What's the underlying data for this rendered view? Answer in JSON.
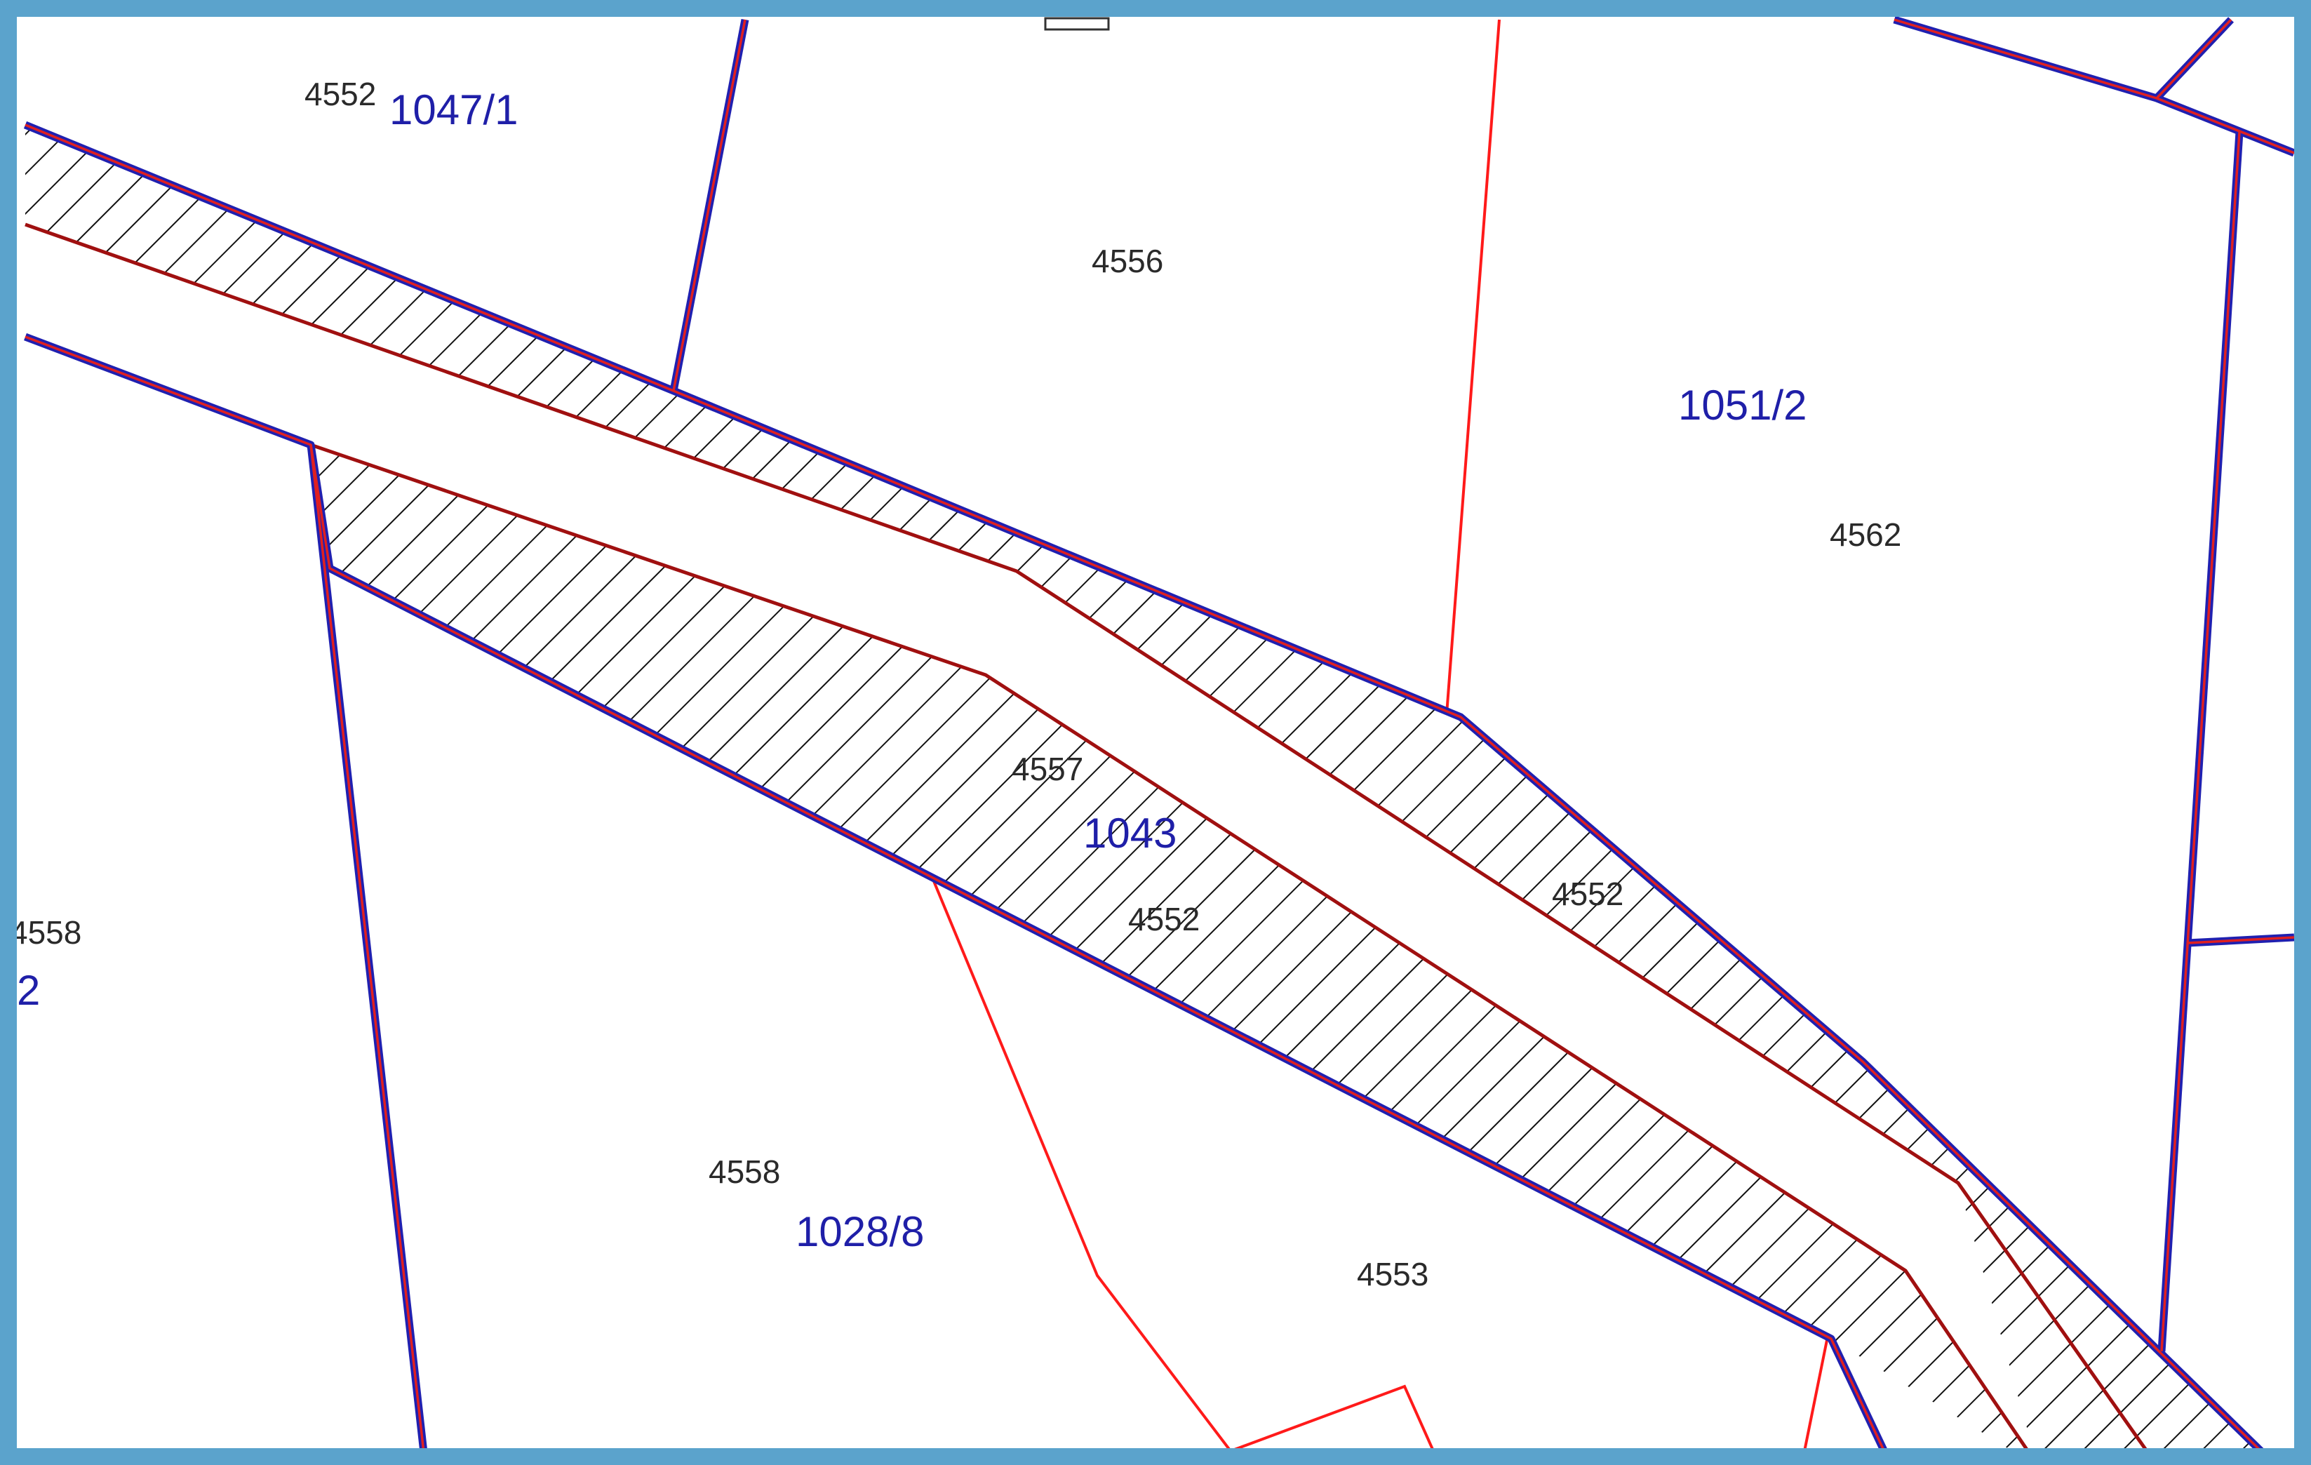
{
  "map": {
    "colors": {
      "frame": "#5ba3cc",
      "parcel_boundary_outer": "#2020b0",
      "parcel_boundary_inner": "#e02020",
      "thin_boundary": "#ff1a1a",
      "strip_edge": "#a01010",
      "hatch": "#111111",
      "parcel_label": "#1f1fa8",
      "number_label": "#2a2a2a"
    },
    "hatch_style": "diagonal-lines",
    "labels": {
      "n4552_topleft": "4552",
      "p1047_1": "1047/1",
      "n4556": "4556",
      "p1051_2": "1051/2",
      "n4562": "4562",
      "n4557": "4557",
      "p1043": "1043",
      "n4552_center": "4552",
      "n4552_right": "4552",
      "n4558_edge": "4558",
      "p2_edge": "2",
      "n4558": "4558",
      "p1028_8": "1028/8",
      "n4553": "4553"
    }
  }
}
